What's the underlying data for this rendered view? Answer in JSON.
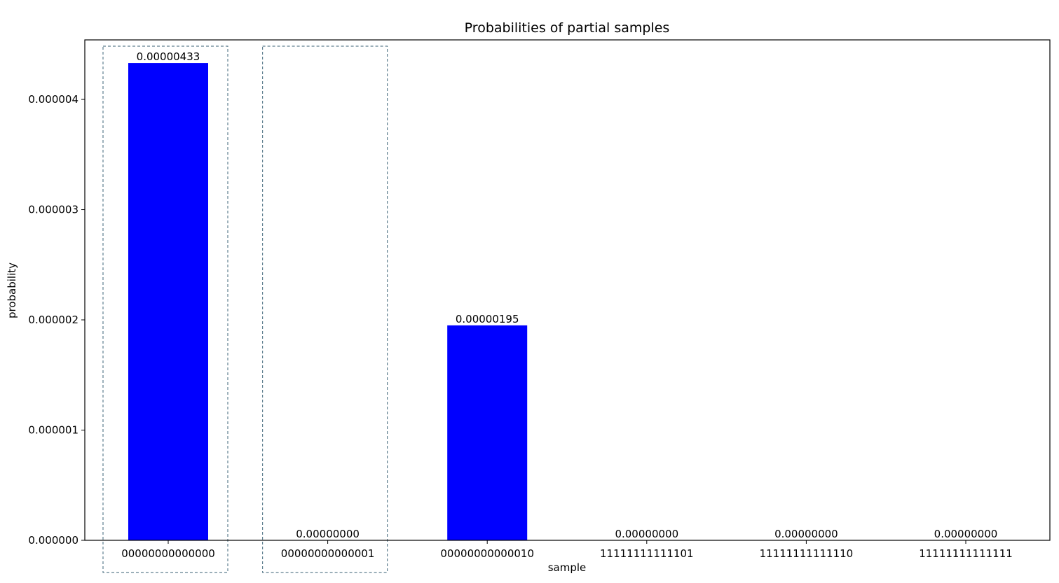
{
  "chart_data": {
    "type": "bar",
    "title": "Probabilities of partial samples",
    "xlabel": "sample",
    "ylabel": "probability",
    "categories": [
      "00000000000000",
      "00000000000001",
      "00000000000010",
      "11111111111101",
      "11111111111110",
      "11111111111111"
    ],
    "values": [
      4.33e-06,
      0.0,
      1.95e-06,
      0.0,
      0.0,
      0.0
    ],
    "value_labels": [
      "0.00000433",
      "0.00000000",
      "0.00000195",
      "0.00000000",
      "0.00000000",
      "0.00000000"
    ],
    "yticks": [
      0.0,
      1e-06,
      2e-06,
      3e-06,
      4e-06
    ],
    "ytick_labels": [
      "0.000000",
      "0.000001",
      "0.000002",
      "0.000003",
      "0.000004"
    ],
    "ylim": [
      0,
      4.54e-06
    ],
    "highlighted_categories": [
      "00000000000000",
      "00000000000001"
    ],
    "grid": false,
    "colors": {
      "bar": "#0000ff",
      "highlight_box": "#5f7f8f",
      "axes": "#000000"
    }
  }
}
